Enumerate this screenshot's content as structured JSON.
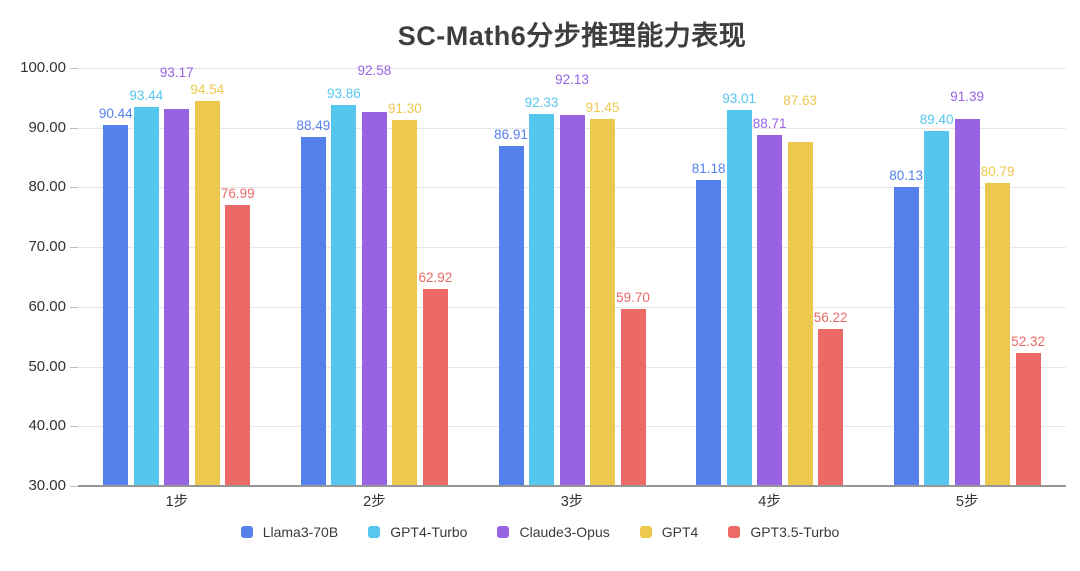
{
  "title": "SC-Math6分步推理能力表现",
  "chart_data": {
    "type": "bar",
    "title": "SC-Math6分步推理能力表现",
    "categories": [
      "1步",
      "2步",
      "3步",
      "4步",
      "5步"
    ],
    "series": [
      {
        "name": "Llama3-70B",
        "color": "#5581EC",
        "values": [
          90.44,
          88.49,
          86.91,
          81.18,
          80.13
        ]
      },
      {
        "name": "GPT4-Turbo",
        "color": "#55C7EF",
        "values": [
          93.44,
          93.86,
          92.33,
          93.01,
          89.4
        ]
      },
      {
        "name": "Claude3-Opus",
        "color": "#9763E3",
        "values": [
          93.17,
          92.58,
          92.13,
          88.71,
          91.39
        ]
      },
      {
        "name": "GPT4",
        "color": "#EDC84F",
        "values": [
          94.54,
          91.3,
          91.45,
          87.63,
          80.79
        ]
      },
      {
        "name": "GPT3.5-Turbo",
        "color": "#EB6A66",
        "values": [
          76.99,
          62.92,
          59.7,
          56.22,
          52.32
        ]
      }
    ],
    "ylim": [
      30,
      100
    ],
    "yticks": [
      "100.00",
      "90.00",
      "80.00",
      "70.00",
      "60.00",
      "50.00",
      "40.00",
      "30.00"
    ],
    "value_labels_decimals": 2,
    "grid": true,
    "legend_position": "bottom"
  },
  "colors": {
    "background": "#FFFFFF",
    "grid": "#E7E7EA",
    "axis": "#969696",
    "tick": "#BBBBBB",
    "axis_text": "#333333",
    "title_text": "#3E3E3E",
    "legend_text": "#3A3A3A"
  }
}
